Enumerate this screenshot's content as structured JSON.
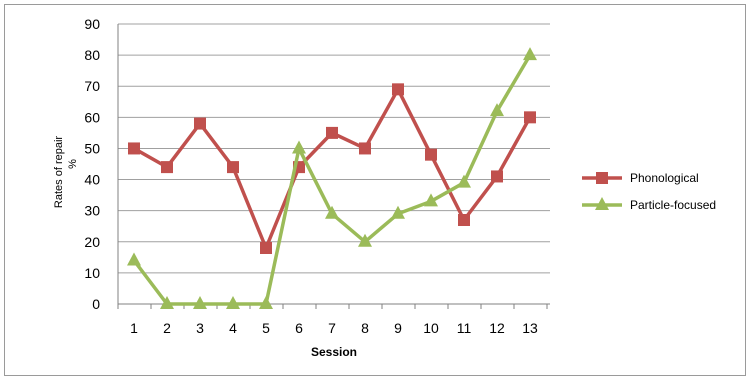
{
  "chart_data": {
    "type": "line",
    "title": "",
    "xlabel": "Session",
    "ylabel_line1": "Rates of repair",
    "ylabel_line2": "%",
    "x": [
      1,
      2,
      3,
      4,
      5,
      6,
      7,
      8,
      9,
      10,
      11,
      12,
      13
    ],
    "x_tick_labels": [
      "1",
      "2",
      "3",
      "4",
      "5",
      "6",
      "7",
      "8",
      "9",
      "10",
      "11",
      "12",
      "13"
    ],
    "ylim": [
      0,
      90
    ],
    "y_ticks": [
      0,
      10,
      20,
      30,
      40,
      50,
      60,
      70,
      80,
      90
    ],
    "grid": "horizontal",
    "legend_position": "right",
    "series": [
      {
        "name": "Phonological",
        "color": "#c0504d",
        "marker": "square",
        "values": [
          50,
          44,
          58,
          44,
          18,
          44,
          55,
          50,
          69,
          48,
          27,
          41,
          60
        ]
      },
      {
        "name": "Particle-focused",
        "color": "#9bbb59",
        "marker": "triangle",
        "values": [
          14,
          0,
          0,
          0,
          0,
          50,
          29,
          20,
          29,
          33,
          39,
          62,
          80
        ]
      }
    ]
  }
}
